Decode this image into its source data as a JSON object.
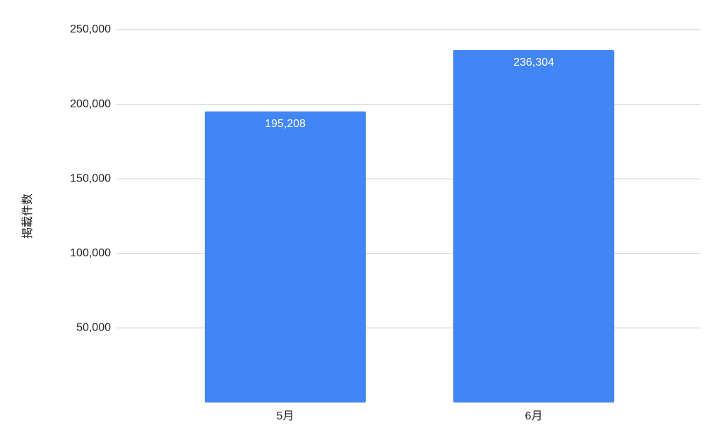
{
  "chart_data": {
    "type": "bar",
    "y_label": "掲載件数",
    "categories": [
      "5月",
      "6月"
    ],
    "values": [
      195208,
      236304
    ],
    "value_labels": [
      "195,208",
      "236,304"
    ],
    "color": "#4285f4",
    "ylim": [
      0,
      250000
    ],
    "yticks": [
      {
        "value": 50000,
        "label": "50,000"
      },
      {
        "value": 100000,
        "label": "100,000"
      },
      {
        "value": 150000,
        "label": "150,000"
      },
      {
        "value": 200000,
        "label": "200,000"
      },
      {
        "value": 250000,
        "label": "250,000"
      }
    ],
    "grid": true
  }
}
